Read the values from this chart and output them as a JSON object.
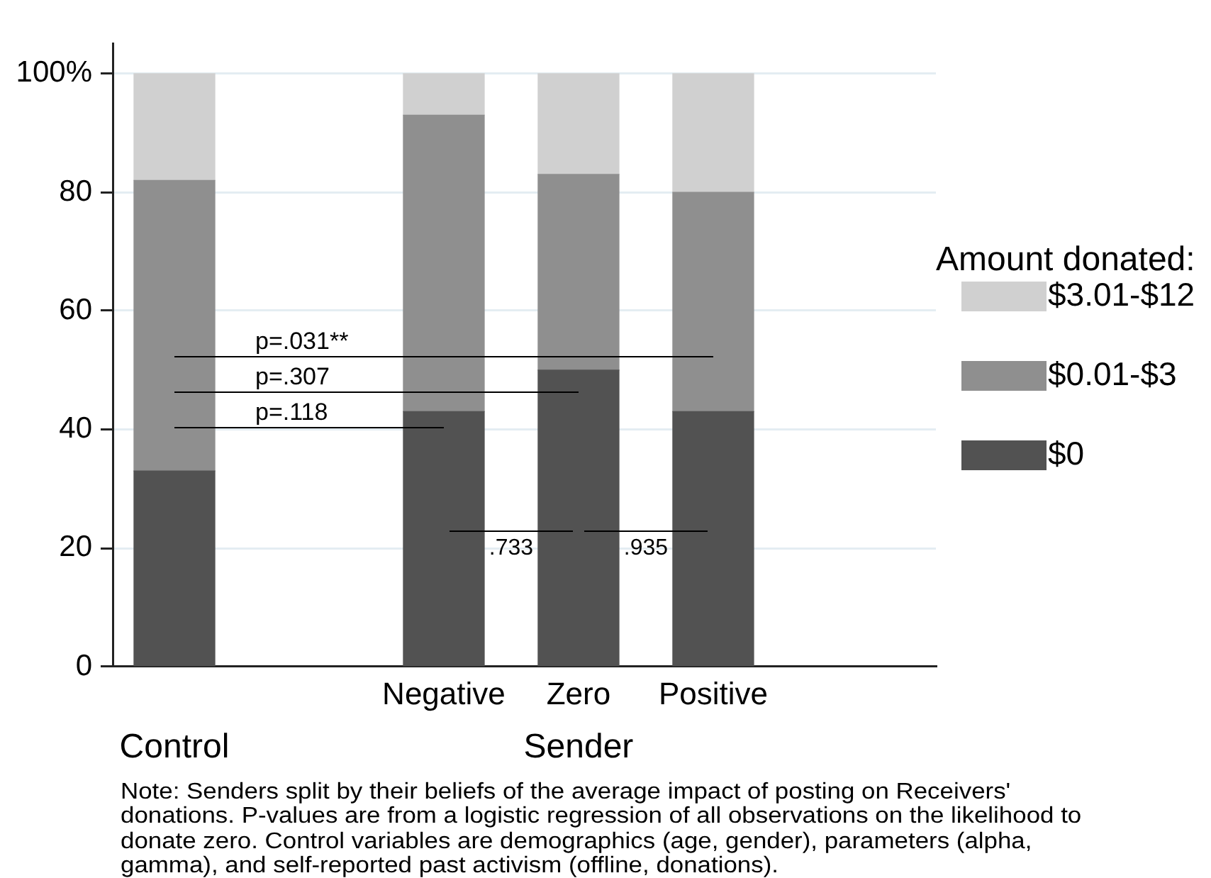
{
  "chart_data": {
    "type": "bar",
    "stacked": true,
    "categories": [
      null,
      null,
      "Negative",
      "Zero",
      "Positive"
    ],
    "series": [
      {
        "name": "$0",
        "color": "#525252",
        "values": [
          33,
          null,
          43,
          50,
          43
        ]
      },
      {
        "name": "$0.01-$3",
        "color": "#8f8f8f",
        "values": [
          49,
          null,
          50,
          33,
          37
        ]
      },
      {
        "name": "$3.01-$12",
        "color": "#d0d0d0",
        "values": [
          18,
          null,
          7,
          17,
          20
        ]
      }
    ],
    "ylim": [
      0,
      105
    ],
    "yticks": [
      0,
      20,
      40,
      60,
      80,
      {
        "value": 100,
        "label": "100%"
      }
    ],
    "grid": "y",
    "legend": "right",
    "legend_title": "Amount donated:",
    "annotations": [
      "p=.031**",
      "p=.307",
      "p=.118",
      ".733",
      ".935",
      "Control",
      "Sender",
      "Note: Senders split by their beliefs of the average impact of posting on Receivers' donations. P-values are from a logistic regression of all observations on the likelihood to donate zero. Control variables are demographics (age, gender), parameters (alpha, gamma), and self-reported past activism (offline, donations)."
    ]
  }
}
